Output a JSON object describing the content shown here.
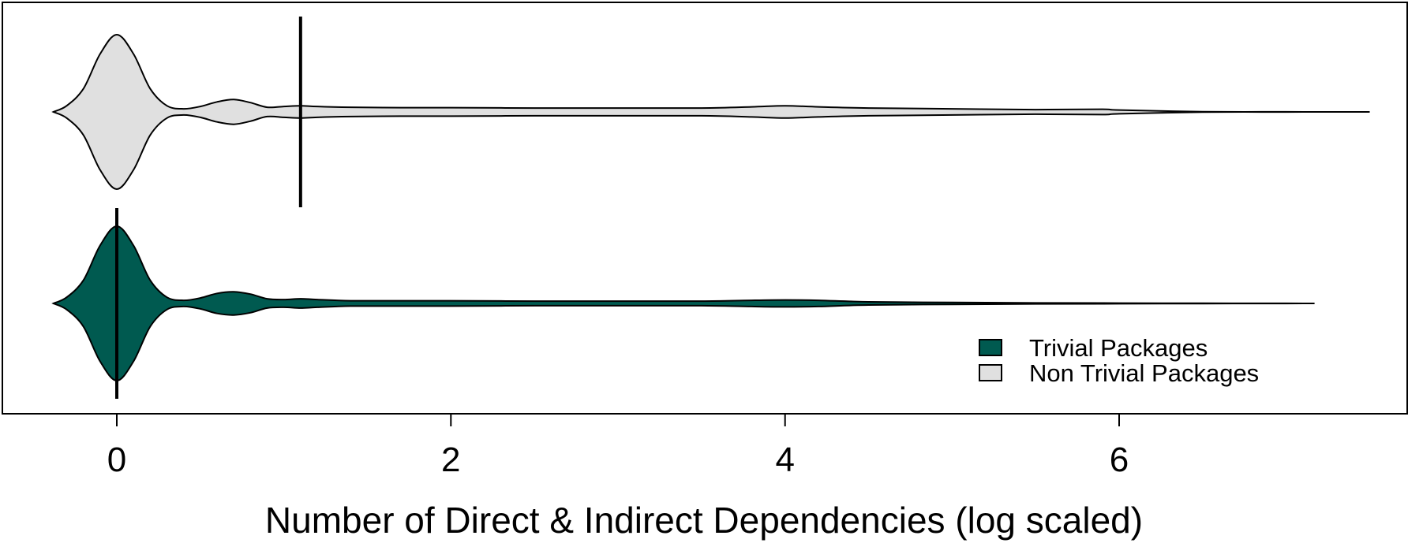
{
  "chart_data": {
    "type": "violin",
    "orientation": "horizontal",
    "xlabel": "Number of Direct & Indirect Dependencies (log scaled)",
    "xlim": [
      -0.35,
      7.5
    ],
    "xticks": [
      "0",
      "2",
      "4",
      "6"
    ],
    "legend": {
      "placement": "bottom-right"
    },
    "series": [
      {
        "name": "Trivial Packages",
        "color": "#005a50",
        "median": 0,
        "range": [
          -0.38,
          7.17
        ],
        "density_x": [
          -0.38,
          -0.3,
          -0.2,
          -0.1,
          0,
          0.1,
          0.2,
          0.3,
          0.4,
          0.5,
          0.6,
          0.7,
          0.8,
          0.9,
          1.0,
          1.1,
          1.2,
          1.4,
          1.7,
          2.0,
          2.5,
          3.0,
          3.5,
          3.8,
          4.0,
          4.2,
          4.5,
          5.0,
          5.5,
          6.0,
          6.5,
          7.0,
          7.17
        ],
        "density_width": [
          0.0,
          0.08,
          0.3,
          0.75,
          1.0,
          0.75,
          0.3,
          0.08,
          0.04,
          0.07,
          0.13,
          0.15,
          0.12,
          0.06,
          0.05,
          0.06,
          0.05,
          0.035,
          0.035,
          0.035,
          0.03,
          0.03,
          0.03,
          0.04,
          0.045,
          0.04,
          0.02,
          0.012,
          0.006,
          0.004,
          0.002,
          0.001,
          0.0
        ]
      },
      {
        "name": "Non Trivial Packages",
        "color": "#e0e0e0",
        "median": 1.1,
        "range": [
          -0.38,
          7.5
        ],
        "density_x": [
          -0.38,
          -0.3,
          -0.2,
          -0.1,
          0,
          0.1,
          0.2,
          0.3,
          0.4,
          0.5,
          0.6,
          0.7,
          0.8,
          0.9,
          1.0,
          1.1,
          1.2,
          1.4,
          1.7,
          2.0,
          2.5,
          3.0,
          3.5,
          3.8,
          4.0,
          4.2,
          4.5,
          5.0,
          5.5,
          5.9,
          6.0,
          6.5,
          7.0,
          7.5
        ],
        "density_width": [
          0.0,
          0.08,
          0.3,
          0.75,
          1.0,
          0.75,
          0.3,
          0.08,
          0.04,
          0.07,
          0.13,
          0.16,
          0.12,
          0.06,
          0.07,
          0.08,
          0.07,
          0.06,
          0.055,
          0.055,
          0.05,
          0.05,
          0.05,
          0.065,
          0.08,
          0.065,
          0.05,
          0.04,
          0.03,
          0.035,
          0.025,
          0.003,
          0.001,
          0.0
        ]
      }
    ]
  }
}
